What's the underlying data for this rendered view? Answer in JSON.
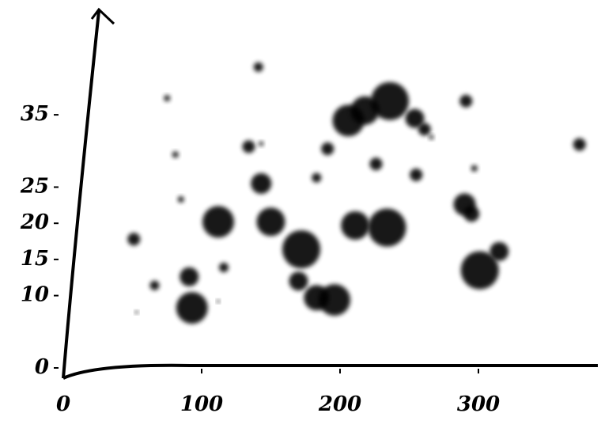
{
  "chart_data": {
    "type": "scatter",
    "color": "#000000",
    "x": [
      141,
      75,
      81,
      85,
      51,
      66,
      53,
      91,
      93,
      112,
      116,
      134,
      143,
      143,
      150,
      172,
      170,
      183,
      196,
      183,
      191,
      206,
      218,
      236,
      254,
      261,
      266,
      226,
      255,
      211,
      234,
      290,
      295,
      291,
      297,
      315,
      301,
      373,
      112
    ],
    "y": [
      41.6,
      37.3,
      29.5,
      23.3,
      17.8,
      11.4,
      7.7,
      12.6,
      8.3,
      20.2,
      13.9,
      30.6,
      31,
      25.5,
      20.2,
      16.4,
      12,
      9.7,
      9.4,
      26.3,
      30.3,
      34.2,
      35.6,
      36.9,
      34.5,
      33,
      31.9,
      28.2,
      26.7,
      19.7,
      19.4,
      22.6,
      21.3,
      36.9,
      27.6,
      16.1,
      13.5,
      30.9,
      9.2
    ],
    "sizes": [
      6,
      4,
      4,
      4,
      8,
      6,
      2,
      12,
      20,
      20,
      6,
      8,
      3,
      13,
      18,
      24,
      12,
      16,
      20,
      6,
      8,
      20,
      18,
      24,
      12,
      8,
      3,
      8,
      8,
      18,
      24,
      14,
      10,
      8,
      4,
      12,
      24,
      8,
      2
    ],
    "xlim": [
      0,
      385
    ],
    "ylim": [
      0,
      50
    ],
    "xticks": [
      0,
      100,
      200,
      300
    ],
    "yticks": [
      0,
      10,
      15,
      20,
      25,
      35
    ]
  }
}
